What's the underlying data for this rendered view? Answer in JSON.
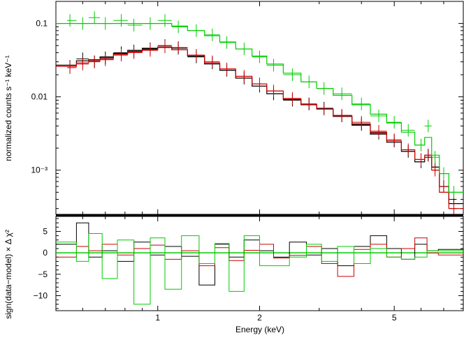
{
  "chart_data": [
    {
      "type": "line",
      "panel": "spectrum",
      "ylabel": "normalized counts s⁻¹ keV⁻¹",
      "xscale": "log",
      "yscale": "log",
      "xlim": [
        0.5,
        8.0
      ],
      "ylim": [
        0.00025,
        0.2
      ],
      "y_ticks": [
        {
          "value": 0.1,
          "label": "0.1"
        },
        {
          "value": 0.01,
          "label": "0.01"
        },
        {
          "value": 0.001,
          "label": "10⁻³"
        }
      ],
      "grid": false,
      "legend": "none",
      "series": [
        {
          "color": "#000000",
          "data_x": [
            0.55,
            0.6,
            0.65,
            0.7,
            0.78,
            0.85,
            0.95,
            1.05,
            1.15,
            1.3,
            1.45,
            1.6,
            1.8,
            2.0,
            2.2,
            2.5,
            2.8,
            3.1,
            3.5,
            4.0,
            4.5,
            5.0,
            5.5,
            6.0,
            6.3,
            6.6,
            7.0,
            7.5
          ],
          "data_y": [
            0.026,
            0.033,
            0.03,
            0.034,
            0.04,
            0.042,
            0.045,
            0.05,
            0.046,
            0.035,
            0.029,
            0.023,
            0.018,
            0.014,
            0.011,
            0.009,
            0.008,
            0.007,
            0.0055,
            0.0042,
            0.0032,
            0.0025,
            0.0018,
            0.0013,
            0.0016,
            0.0011,
            0.0006,
            0.0004
          ],
          "model_y": [
            0.027,
            0.031,
            0.032,
            0.035,
            0.039,
            0.043,
            0.046,
            0.048,
            0.044,
            0.036,
            0.028,
            0.023,
            0.018,
            0.014,
            0.011,
            0.0092,
            0.0078,
            0.0068,
            0.0054,
            0.0041,
            0.0031,
            0.0024,
            0.0018,
            0.0013,
            0.0015,
            0.0011,
            0.0006,
            0.00035
          ]
        },
        {
          "color": "#cc0000",
          "data_x": [
            0.55,
            0.6,
            0.65,
            0.7,
            0.78,
            0.85,
            0.95,
            1.05,
            1.15,
            1.3,
            1.45,
            1.6,
            1.8,
            2.0,
            2.2,
            2.5,
            2.8,
            3.1,
            3.5,
            4.0,
            4.5,
            5.0,
            5.5,
            6.0,
            6.3,
            6.6,
            7.0,
            7.5
          ],
          "data_y": [
            0.025,
            0.028,
            0.03,
            0.032,
            0.037,
            0.04,
            0.043,
            0.048,
            0.047,
            0.037,
            0.03,
            0.024,
            0.019,
            0.015,
            0.012,
            0.0095,
            0.008,
            0.0068,
            0.0056,
            0.0045,
            0.0034,
            0.0026,
            0.0019,
            0.0014,
            0.0016,
            0.001,
            0.0006,
            0.0003
          ],
          "model_y": [
            0.026,
            0.029,
            0.031,
            0.033,
            0.038,
            0.041,
            0.044,
            0.047,
            0.044,
            0.037,
            0.029,
            0.024,
            0.019,
            0.015,
            0.012,
            0.0094,
            0.0079,
            0.0068,
            0.0055,
            0.0043,
            0.0033,
            0.0025,
            0.0019,
            0.0014,
            0.0016,
            0.001,
            0.0005,
            0.0003
          ]
        },
        {
          "color": "#00cc00",
          "data_x": [
            0.55,
            0.6,
            0.65,
            0.7,
            0.78,
            0.85,
            0.95,
            1.05,
            1.15,
            1.3,
            1.45,
            1.6,
            1.8,
            2.0,
            2.2,
            2.5,
            2.8,
            3.1,
            3.5,
            4.0,
            4.5,
            5.0,
            5.5,
            6.0,
            6.3,
            6.6,
            7.0,
            7.5
          ],
          "data_y": [
            0.11,
            0.1,
            0.12,
            0.1,
            0.11,
            0.095,
            0.1,
            0.11,
            0.09,
            0.08,
            0.07,
            0.055,
            0.045,
            0.035,
            0.027,
            0.02,
            0.016,
            0.013,
            0.011,
            0.008,
            0.0055,
            0.0045,
            0.0035,
            0.0022,
            0.004,
            0.0015,
            0.0009,
            0.0005
          ],
          "model_y": [
            0.1,
            0.1,
            0.1,
            0.1,
            0.1,
            0.1,
            0.1,
            0.1,
            0.092,
            0.08,
            0.068,
            0.056,
            0.045,
            0.036,
            0.028,
            0.021,
            0.016,
            0.013,
            0.0105,
            0.0078,
            0.0058,
            0.0044,
            0.0033,
            0.0022,
            0.0028,
            0.0016,
            0.0009,
            0.0005
          ]
        }
      ]
    },
    {
      "type": "line",
      "panel": "residuals",
      "xlabel": "Energy (keV)",
      "ylabel": "sign(data−model) × Δ χ²",
      "xscale": "log",
      "xlim": [
        0.5,
        8.0
      ],
      "ylim": [
        -13.5,
        8.5
      ],
      "x_ticks": [
        {
          "value": 1,
          "label": "1"
        },
        {
          "value": 2,
          "label": "2"
        },
        {
          "value": 5,
          "label": "5"
        }
      ],
      "y_ticks": [
        {
          "value": 5,
          "label": "5"
        },
        {
          "value": 0,
          "label": "0"
        },
        {
          "value": -5,
          "label": "−5"
        },
        {
          "value": -10,
          "label": "−10"
        }
      ],
      "grid": false,
      "legend": "none",
      "series": [
        {
          "color": "#000000",
          "x": [
            0.55,
            0.6,
            0.65,
            0.72,
            0.8,
            0.9,
            1.0,
            1.1,
            1.25,
            1.4,
            1.55,
            1.7,
            1.9,
            2.1,
            2.3,
            2.6,
            2.9,
            3.2,
            3.6,
            4.0,
            4.5,
            5.0,
            5.5,
            6.0,
            6.5,
            7.0
          ],
          "y": [
            2.0,
            7.0,
            -1.0,
            0.5,
            -2.0,
            2.5,
            -0.5,
            1.5,
            -0.8,
            -7.5,
            2.0,
            -1.0,
            3.0,
            0.5,
            -1.0,
            2.5,
            -0.5,
            1.0,
            -3.0,
            1.5,
            4.0,
            1.0,
            -1.5,
            2.0,
            0.5,
            0.8
          ]
        },
        {
          "color": "#cc0000",
          "x": [
            0.55,
            0.6,
            0.65,
            0.72,
            0.8,
            0.9,
            1.0,
            1.1,
            1.25,
            1.4,
            1.55,
            1.7,
            1.9,
            2.1,
            2.3,
            2.6,
            2.9,
            3.2,
            3.6,
            4.0,
            4.5,
            5.0,
            5.5,
            6.0,
            6.5,
            7.0
          ],
          "y": [
            -1.0,
            1.5,
            0.5,
            2.0,
            -0.5,
            1.0,
            1.8,
            -1.5,
            0.5,
            -3.0,
            1.2,
            -1.8,
            0.6,
            2.0,
            -1.2,
            -0.6,
            1.5,
            -2.5,
            -5.5,
            0.8,
            2.0,
            -1.0,
            1.0,
            3.5,
            0.0,
            -0.5
          ]
        },
        {
          "color": "#00cc00",
          "x": [
            0.55,
            0.6,
            0.65,
            0.72,
            0.8,
            0.9,
            1.0,
            1.1,
            1.25,
            1.4,
            1.55,
            1.7,
            1.9,
            2.1,
            2.3,
            2.6,
            2.9,
            3.2,
            3.6,
            4.0,
            4.5,
            5.0,
            5.5,
            6.0,
            6.5,
            7.0
          ],
          "y": [
            2.5,
            -2.0,
            4.5,
            -6.0,
            3.0,
            -12.0,
            3.5,
            -8.5,
            4.0,
            -2.5,
            2.2,
            -9.0,
            4.0,
            -3.0,
            -3.0,
            -1.0,
            2.0,
            -2.0,
            1.5,
            -2.5,
            1.0,
            -1.0,
            -1.5,
            -1.0,
            0.5,
            0.5
          ]
        }
      ]
    }
  ]
}
